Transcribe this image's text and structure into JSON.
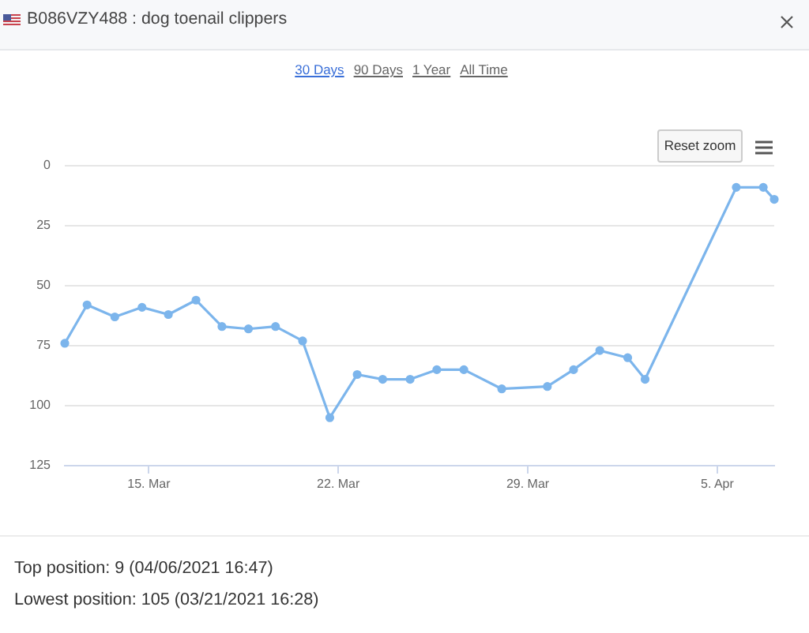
{
  "chart_data": {
    "type": "line",
    "title": "B086VZY488 : dog toenail clippers",
    "x": [
      "2021-03-11T21:30",
      "2021-03-12T17:15",
      "2021-03-13T17:50",
      "2021-03-14T18:00",
      "2021-03-15T17:20",
      "2021-03-16T17:50",
      "2021-03-17T16:50",
      "2021-03-18T16:20",
      "2021-03-19T16:20",
      "2021-03-20T16:20",
      "2021-03-21T16:28",
      "2021-03-22T16:45",
      "2021-03-23T15:20",
      "2021-03-24T15:40",
      "2021-03-25T15:20",
      "2021-03-26T15:20",
      "2021-03-28T00:55",
      "2021-03-29T17:20",
      "2021-03-30T16:35",
      "2021-03-31T15:50",
      "2021-04-01T16:35",
      "2021-04-02T08:00",
      "2021-04-05T16:50",
      "2021-04-06T16:47",
      "2021-04-07T02:30"
    ],
    "values": [
      74,
      58,
      63,
      59,
      62,
      56,
      67,
      68,
      67,
      73,
      105,
      87,
      89,
      89,
      85,
      85,
      93,
      92,
      85,
      77,
      80,
      89,
      9,
      9,
      14
    ],
    "color": "#7cb5ec",
    "marker": "circle",
    "line_style": "solid",
    "xlim": [
      "2021-03-11T21:30",
      "2021-04-07T02:30"
    ],
    "xticks": [
      {
        "value": "2021-03-15",
        "label": "15. Mar"
      },
      {
        "value": "2021-03-22",
        "label": "22. Mar"
      },
      {
        "value": "2021-03-29",
        "label": "29. Mar"
      },
      {
        "value": "2021-04-05",
        "label": "5. Apr"
      }
    ],
    "ylim": [
      125,
      0
    ],
    "yticks": [
      0,
      25,
      50,
      75,
      100,
      125
    ],
    "grid": "y",
    "annotations": [
      "30 Days",
      "90 Days",
      "1 Year",
      "All Time",
      "Reset zoom",
      "Top position: 9 (04/06/2021 16:47)",
      "Lowest position: 105 (03/21/2021 16:28)"
    ]
  }
}
